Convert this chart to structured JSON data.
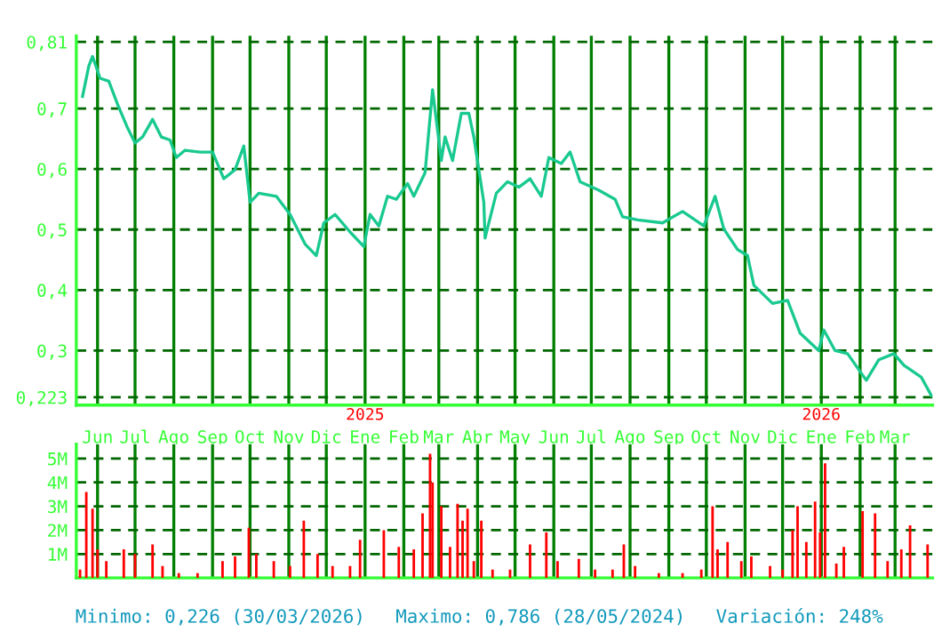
{
  "chart_data": [
    {
      "type": "line",
      "x": [
        "2024-05-20",
        "2024-05-25",
        "2024-05-28",
        "2024-06-03",
        "2024-06-10",
        "2024-06-17",
        "2024-06-25",
        "2024-07-01",
        "2024-07-07",
        "2024-07-15",
        "2024-07-22",
        "2024-07-29",
        "2024-08-03",
        "2024-08-10",
        "2024-08-22",
        "2024-09-01",
        "2024-09-10",
        "2024-09-19",
        "2024-09-26",
        "2024-10-01",
        "2024-10-08",
        "2024-10-22",
        "2024-11-02",
        "2024-11-14",
        "2024-11-23",
        "2024-11-29",
        "2024-12-08",
        "2024-12-20",
        "2024-12-31",
        "2025-01-05",
        "2025-01-12",
        "2025-01-19",
        "2025-01-26",
        "2025-02-04",
        "2025-02-09",
        "2025-02-18",
        "2025-02-24",
        "2025-03-03",
        "2025-03-06",
        "2025-03-12",
        "2025-03-19",
        "2025-03-25",
        "2025-03-29",
        "2025-04-06",
        "2025-04-07",
        "2025-04-16",
        "2025-04-25",
        "2025-05-04",
        "2025-05-13",
        "2025-05-22",
        "2025-05-28",
        "2025-06-07",
        "2025-06-14",
        "2025-06-22",
        "2025-07-07",
        "2025-07-20",
        "2025-07-26",
        "2025-08-07",
        "2025-08-27",
        "2025-09-12",
        "2025-09-29",
        "2025-10-08",
        "2025-10-15",
        "2025-10-26",
        "2025-11-03",
        "2025-11-08",
        "2025-11-23",
        "2025-12-05",
        "2025-12-15",
        "2025-12-30",
        "2026-01-03",
        "2026-01-12",
        "2026-01-22",
        "2026-02-06",
        "2026-02-16",
        "2026-02-28",
        "2026-03-08",
        "2026-03-22",
        "2026-03-30"
      ],
      "series": [
        {
          "color": "#19c990",
          "values": [
            0.72,
            0.77,
            0.786,
            0.75,
            0.745,
            0.707,
            0.668,
            0.643,
            0.653,
            0.682,
            0.653,
            0.648,
            0.619,
            0.631,
            0.628,
            0.628,
            0.584,
            0.599,
            0.638,
            0.545,
            0.56,
            0.555,
            0.525,
            0.476,
            0.457,
            0.511,
            0.525,
            0.496,
            0.472,
            0.525,
            0.506,
            0.555,
            0.55,
            0.576,
            0.555,
            0.594,
            0.731,
            0.614,
            0.653,
            0.614,
            0.692,
            0.692,
            0.653,
            0.545,
            0.486,
            0.56,
            0.579,
            0.57,
            0.584,
            0.555,
            0.619,
            0.609,
            0.628,
            0.579,
            0.565,
            0.55,
            0.521,
            0.516,
            0.511,
            0.53,
            0.506,
            0.555,
            0.501,
            0.467,
            0.457,
            0.408,
            0.378,
            0.383,
            0.329,
            0.3,
            0.334,
            0.3,
            0.295,
            0.251,
            0.285,
            0.295,
            0.276,
            0.256,
            0.226
          ]
        }
      ],
      "xlim": [
        "2024-05-15",
        "2026-03-31"
      ],
      "xticks": [
        {
          "value": "2024-06-01",
          "label": "Jun"
        },
        {
          "value": "2024-07-01",
          "label": "Jul"
        },
        {
          "value": "2024-08-01",
          "label": "Ago"
        },
        {
          "value": "2024-09-01",
          "label": "Sep"
        },
        {
          "value": "2024-10-01",
          "label": "Oct"
        },
        {
          "value": "2024-11-01",
          "label": "Nov"
        },
        {
          "value": "2024-12-01",
          "label": "Dic"
        },
        {
          "value": "2025-01-01",
          "label": "Ene"
        },
        {
          "value": "2025-02-01",
          "label": "Feb"
        },
        {
          "value": "2025-03-01",
          "label": "Mar"
        },
        {
          "value": "2025-04-01",
          "label": "Abr"
        },
        {
          "value": "2025-05-01",
          "label": "May"
        },
        {
          "value": "2025-06-01",
          "label": "Jun"
        },
        {
          "value": "2025-07-01",
          "label": "Jul"
        },
        {
          "value": "2025-08-01",
          "label": "Ago"
        },
        {
          "value": "2025-09-01",
          "label": "Sep"
        },
        {
          "value": "2025-10-01",
          "label": "Oct"
        },
        {
          "value": "2025-11-01",
          "label": "Nov"
        },
        {
          "value": "2025-12-01",
          "label": "Dic"
        },
        {
          "value": "2026-01-01",
          "label": "Ene"
        },
        {
          "value": "2026-02-01",
          "label": "Feb"
        },
        {
          "value": "2026-03-01",
          "label": "Mar"
        }
      ],
      "ylim": [
        0.21,
        0.82
      ],
      "yticks": [
        {
          "value": 0.223,
          "label": "0,223"
        },
        {
          "value": 0.3,
          "label": "0,3"
        },
        {
          "value": 0.4,
          "label": "0,4"
        },
        {
          "value": 0.5,
          "label": "0,5"
        },
        {
          "value": 0.6,
          "label": "0,6"
        },
        {
          "value": 0.7,
          "label": "0,7"
        },
        {
          "value": 0.81,
          "label": "0,81"
        }
      ],
      "grid": true,
      "annotations": [
        "2025",
        "2026"
      ]
    },
    {
      "type": "bar",
      "x": [
        "2024-05-18",
        "2024-05-23",
        "2024-05-28",
        "2024-06-01",
        "2024-06-08",
        "2024-06-22",
        "2024-07-01",
        "2024-07-15",
        "2024-07-23",
        "2024-08-05",
        "2024-08-20",
        "2024-09-09",
        "2024-09-19",
        "2024-09-30",
        "2024-10-06",
        "2024-10-20",
        "2024-11-02",
        "2024-11-13",
        "2024-11-24",
        "2024-12-06",
        "2024-12-20",
        "2024-12-28",
        "2025-01-16",
        "2025-01-28",
        "2025-02-09",
        "2025-02-16",
        "2025-02-22",
        "2025-02-24",
        "2025-03-03",
        "2025-03-10",
        "2025-03-16",
        "2025-03-20",
        "2025-03-24",
        "2025-03-29",
        "2025-04-04",
        "2025-04-13",
        "2025-04-27",
        "2025-05-13",
        "2025-05-26",
        "2025-06-04",
        "2025-06-21",
        "2025-07-04",
        "2025-07-18",
        "2025-07-27",
        "2025-08-05",
        "2025-08-24",
        "2025-09-12",
        "2025-09-27",
        "2025-10-06",
        "2025-10-10",
        "2025-10-18",
        "2025-10-29",
        "2025-11-06",
        "2025-11-21",
        "2025-12-01",
        "2025-12-09",
        "2025-12-13",
        "2025-12-20",
        "2025-12-27",
        "2025-12-31",
        "2026-01-04",
        "2026-01-13",
        "2026-01-19",
        "2026-02-03",
        "2026-02-13",
        "2026-02-23",
        "2026-03-06",
        "2026-03-13",
        "2026-03-27"
      ],
      "series": [
        {
          "color": "#ff0000",
          "values": [
            0.35,
            3.6,
            2.9,
            1.2,
            0.7,
            1.2,
            1.0,
            1.4,
            0.5,
            0.2,
            0.2,
            0.7,
            0.9,
            2.1,
            1.0,
            0.7,
            0.5,
            2.4,
            1.0,
            0.5,
            0.5,
            1.6,
            2.0,
            1.3,
            1.2,
            2.7,
            5.2,
            4.0,
            3.0,
            1.3,
            3.1,
            2.4,
            2.9,
            0.7,
            2.4,
            0.35,
            0.35,
            1.4,
            1.9,
            0.7,
            0.8,
            0.35,
            0.35,
            1.4,
            0.5,
            0.2,
            0.2,
            0.35,
            3.0,
            1.2,
            1.5,
            0.7,
            0.9,
            0.5,
            0.35,
            2.0,
            3.0,
            1.5,
            3.2,
            1.9,
            4.8,
            0.6,
            1.3,
            2.8,
            2.7,
            0.7,
            1.2,
            2.2,
            1.4
          ]
        }
      ],
      "xlim": [
        "2024-05-15",
        "2026-03-31"
      ],
      "xticks": [
        {
          "value": "2024-06-01",
          "label": null
        },
        {
          "value": "2024-07-01",
          "label": null
        },
        {
          "value": "2024-08-01",
          "label": null
        },
        {
          "value": "2024-09-01",
          "label": null
        },
        {
          "value": "2024-10-01",
          "label": null
        },
        {
          "value": "2024-11-01",
          "label": null
        },
        {
          "value": "2024-12-01",
          "label": null
        },
        {
          "value": "2025-01-01",
          "label": null
        },
        {
          "value": "2025-02-01",
          "label": null
        },
        {
          "value": "2025-03-01",
          "label": null
        },
        {
          "value": "2025-04-01",
          "label": null
        },
        {
          "value": "2025-05-01",
          "label": null
        },
        {
          "value": "2025-06-01",
          "label": null
        },
        {
          "value": "2025-07-01",
          "label": null
        },
        {
          "value": "2025-08-01",
          "label": null
        },
        {
          "value": "2025-09-01",
          "label": null
        },
        {
          "value": "2025-10-01",
          "label": null
        },
        {
          "value": "2025-11-01",
          "label": null
        },
        {
          "value": "2025-12-01",
          "label": null
        },
        {
          "value": "2026-01-01",
          "label": null
        },
        {
          "value": "2026-02-01",
          "label": null
        },
        {
          "value": "2026-03-01",
          "label": null
        }
      ],
      "ylim": [
        0,
        5.6
      ],
      "yticks": [
        {
          "value": 1,
          "label": "1M"
        },
        {
          "value": 2,
          "label": "2M"
        },
        {
          "value": 3,
          "label": "3M"
        },
        {
          "value": 4,
          "label": "4M"
        },
        {
          "value": 5,
          "label": "5M"
        }
      ],
      "tick_labels": "y",
      "grid": true,
      "annotations": [
        "Minimo: 0,226 (30/03/2026)",
        "Maximo: 0,786 (28/05/2024)",
        "Variación: 248%"
      ]
    }
  ]
}
